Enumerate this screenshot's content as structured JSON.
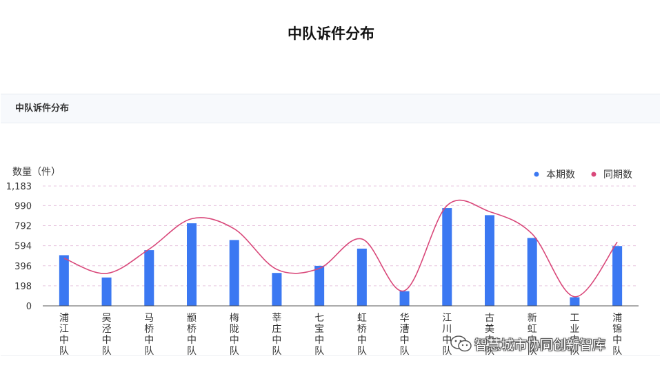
{
  "slide_title": "中队诉件分布",
  "panel_title": "中队诉件分布",
  "watermark_text": "智慧城市协同创新智库",
  "colors": {
    "bar": "#3b78f2",
    "line": "#d9487a",
    "legend_bar": "#3b78f2",
    "legend_line": "#d9487a"
  },
  "chart_data": {
    "type": "bar",
    "title": "",
    "ylabel": "数量（件）",
    "xlabel": "",
    "ylim": [
      0,
      1183
    ],
    "yticks": [
      0,
      198,
      396,
      594,
      792,
      990,
      1183
    ],
    "ytick_labels": [
      "0",
      "198",
      "396",
      "594",
      "792",
      "990",
      "1,183"
    ],
    "grid": true,
    "legend_position": "top-right",
    "categories": [
      "浦江中队",
      "吴泾中队",
      "马桥中队",
      "颛桥中队",
      "梅陇中队",
      "莘庄中队",
      "七宝中队",
      "虹桥中队",
      "华漕中队",
      "江川中队",
      "古美中队",
      "新虹中队",
      "工业中队",
      "浦锦中队"
    ],
    "series": [
      {
        "name": "本期数",
        "type": "bar",
        "values": [
          500,
          280,
          550,
          815,
          650,
          325,
          395,
          565,
          145,
          965,
          895,
          670,
          85,
          590
        ]
      },
      {
        "name": "同期数",
        "type": "line",
        "values": [
          470,
          320,
          560,
          860,
          760,
          360,
          370,
          660,
          150,
          990,
          930,
          710,
          90,
          630
        ]
      }
    ]
  }
}
